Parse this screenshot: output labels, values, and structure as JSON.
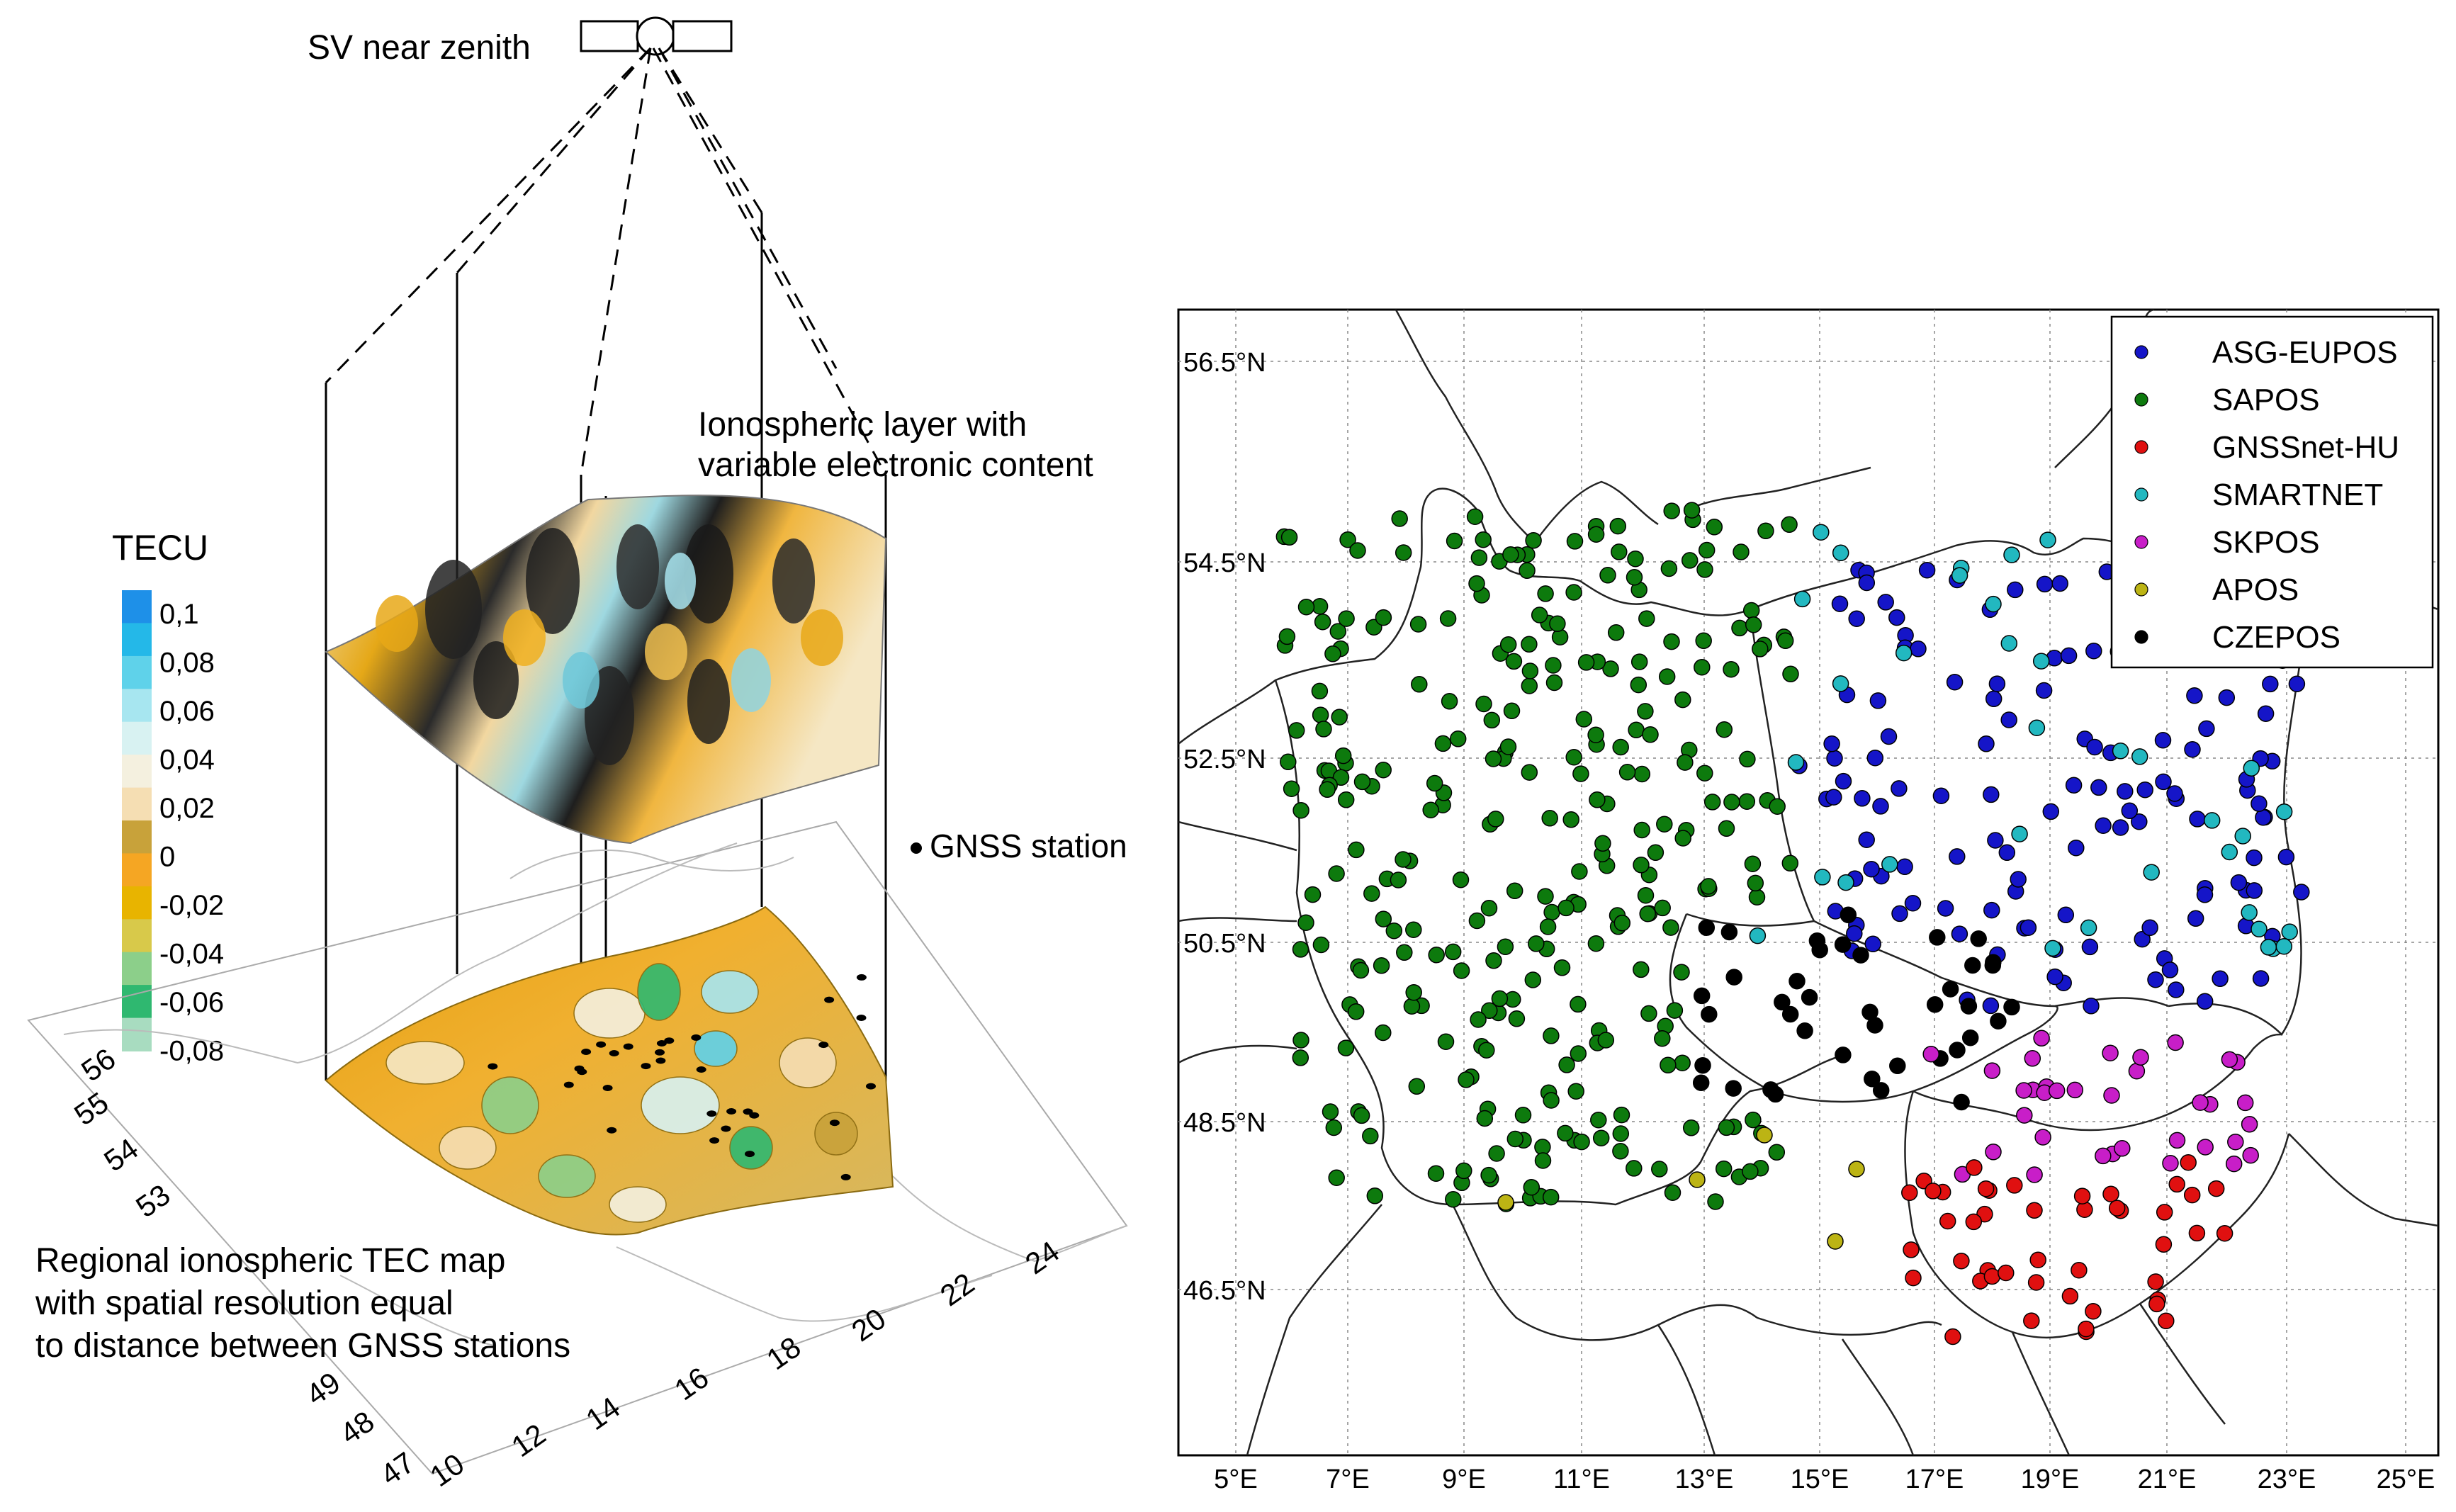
{
  "left": {
    "satellite_label": "SV near zenith",
    "layer_label_line1": "Ionospheric layer with",
    "layer_label_line2": "variable electronic content",
    "legend_title": "TECU",
    "legend_values": [
      "0,1",
      "0,08",
      "0,06",
      "0,04",
      "0,02",
      "0",
      "-0,02",
      "-0,04",
      "-0,06",
      "-0,08"
    ],
    "legend_colors": [
      "#1e90e8",
      "#24b8e8",
      "#5fd2ea",
      "#a7e6f0",
      "#d8f2f2",
      "#f4f0df",
      "#f5deb3",
      "#c8a23a",
      "#f5a623",
      "#e8b400",
      "#d8c94a",
      "#8ccf8a",
      "#2fb870",
      "#a8dcc0"
    ],
    "station_legend": "GNSS station",
    "map_label_line1": "Regional ionospheric TEC map",
    "map_label_line2": "with spatial resolution equal",
    "map_label_line3": "to distance between GNSS stations",
    "lat_ticks": [
      "56",
      "55",
      "54",
      "53"
    ],
    "lat_ticks_lower": [
      "49",
      "48",
      "47"
    ],
    "lon_ticks": [
      "10",
      "12",
      "14",
      "16",
      "18",
      "20",
      "22",
      "24"
    ]
  },
  "right": {
    "lat_labels": [
      "56.5°N",
      "54.5°N",
      "52.5°N",
      "50.5°N",
      "48.5°N",
      "46.5°N"
    ],
    "lon_labels": [
      "5°E",
      "7°E",
      "9°E",
      "11°E",
      "13°E",
      "15°E",
      "17°E",
      "19°E",
      "21°E",
      "23°E",
      "25°E"
    ],
    "legend": [
      {
        "name": "ASG-EUPOS",
        "color": "#1515c8"
      },
      {
        "name": "SAPOS",
        "color": "#0d7a0d"
      },
      {
        "name": "GNSSnet-HU",
        "color": "#e01010"
      },
      {
        "name": "SMARTNET",
        "color": "#22b8c0"
      },
      {
        "name": "SKPOS",
        "color": "#c81ec8"
      },
      {
        "name": "APOS",
        "color": "#bcb414"
      },
      {
        "name": "CZEPOS",
        "color": "#000000"
      }
    ]
  }
}
